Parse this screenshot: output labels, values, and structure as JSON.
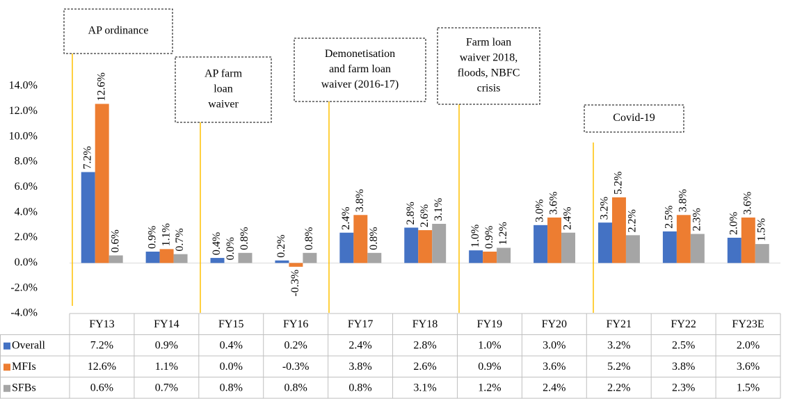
{
  "chart_data": {
    "type": "bar",
    "categories": [
      "FY13",
      "FY14",
      "FY15",
      "FY16",
      "FY17",
      "FY18",
      "FY19",
      "FY20",
      "FY21",
      "FY22",
      "FY23E"
    ],
    "series": [
      {
        "name": "Overall",
        "color": "#4472c4",
        "values": [
          7.2,
          0.9,
          0.4,
          0.2,
          2.4,
          2.8,
          1.0,
          3.0,
          3.2,
          2.5,
          2.0
        ],
        "value_labels": [
          "7.2%",
          "0.9%",
          "0.4%",
          "0.2%",
          "2.4%",
          "2.8%",
          "1.0%",
          "3.0%",
          "3.2%",
          "2.5%",
          "2.0%"
        ]
      },
      {
        "name": "MFIs",
        "color": "#ed7d31",
        "values": [
          12.6,
          1.1,
          0.0,
          -0.3,
          3.8,
          2.6,
          0.9,
          3.6,
          5.2,
          3.8,
          3.6
        ],
        "value_labels": [
          "12.6%",
          "1.1%",
          "0.0%",
          "-0.3%",
          "3.8%",
          "2.6%",
          "0.9%",
          "3.6%",
          "5.2%",
          "3.8%",
          "3.6%"
        ]
      },
      {
        "name": "SFBs",
        "color": "#a5a5a5",
        "values": [
          0.6,
          0.7,
          0.8,
          0.8,
          0.8,
          3.1,
          1.2,
          2.4,
          2.2,
          2.3,
          1.5
        ],
        "value_labels": [
          "0.6%",
          "0.7%",
          "0.8%",
          "0.8%",
          "0.8%",
          "3.1%",
          "1.2%",
          "2.4%",
          "2.2%",
          "2.3%",
          "1.5%"
        ]
      }
    ],
    "ylim": [
      -4,
      14
    ],
    "yticks": [
      {
        "value": -4,
        "label": "-4.0%"
      },
      {
        "value": -2,
        "label": "-2.0%"
      },
      {
        "value": 0,
        "label": "0.0%"
      },
      {
        "value": 2,
        "label": "2.0%"
      },
      {
        "value": 4,
        "label": "4.0%"
      },
      {
        "value": 6,
        "label": "6.0%"
      },
      {
        "value": 8,
        "label": "8.0%"
      },
      {
        "value": 10,
        "label": "10.0%"
      },
      {
        "value": 12,
        "label": "12.0%"
      },
      {
        "value": 14,
        "label": "14.0%"
      }
    ],
    "annotations": [
      {
        "lines": [
          "AP ordinance"
        ]
      },
      {
        "lines": [
          "AP farm",
          "loan",
          "waiver"
        ]
      },
      {
        "lines": [
          "Demonetisation",
          "and farm loan",
          "waiver (2016-17)"
        ]
      },
      {
        "lines": [
          "Farm loan",
          "waiver 2018,",
          "floods, NBFC",
          "crisis"
        ]
      },
      {
        "lines": [
          "Covid-19"
        ]
      }
    ],
    "data_table": true
  }
}
